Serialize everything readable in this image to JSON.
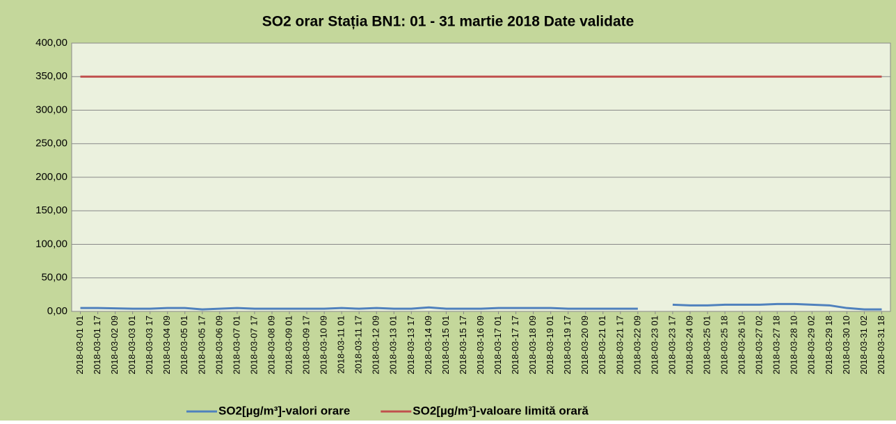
{
  "chart_data": {
    "type": "line",
    "title": "SO2 orar Stația BN1: 01 - 31 martie 2018 Date validate",
    "categories": [
      "2018-03-01 01",
      "2018-03-01 17",
      "2018-03-02 09",
      "2018-03-03 01",
      "2018-03-03 17",
      "2018-03-04 09",
      "2018-03-05 01",
      "2018-03-05 17",
      "2018-03-06 09",
      "2018-03-07 01",
      "2018-03-07 17",
      "2018-03-08 09",
      "2018-03-09 01",
      "2018-03-09 17",
      "2018-03-10 09",
      "2018-03-11 01",
      "2018-03-11 17",
      "2018-03-12 09",
      "2018-03-13 01",
      "2018-03-13 17",
      "2018-03-14 09",
      "2018-03-15 01",
      "2018-03-15 17",
      "2018-03-16 09",
      "2018-03-17 01",
      "2018-03-17 17",
      "2018-03-18 09",
      "2018-03-19 01",
      "2018-03-19 17",
      "2018-03-20 09",
      "2018-03-21 01",
      "2018-03-21 17",
      "2018-03-22 09",
      "2018-03-23 01",
      "2018-03-23 17",
      "2018-03-24 09",
      "2018-03-25 01",
      "2018-03-25 18",
      "2018-03-26 10",
      "2018-03-27 02",
      "2018-03-27 18",
      "2018-03-28 10",
      "2018-03-29 02",
      "2018-03-29 18",
      "2018-03-30 10",
      "2018-03-31 02",
      "2018-03-31 18"
    ],
    "series": [
      {
        "name": "SO2[µg/m³]-valori orare",
        "color": "#4f81bd",
        "values": [
          5,
          5,
          4.5,
          4,
          4,
          5,
          5,
          3,
          4,
          5,
          4,
          4,
          4,
          4,
          4,
          5,
          4,
          5,
          4,
          4,
          6,
          4,
          4,
          4,
          5,
          5,
          5,
          5,
          4,
          4,
          4,
          4,
          4,
          null,
          10,
          9,
          9,
          10,
          10,
          10,
          11,
          11,
          10,
          9,
          5,
          3,
          3
        ]
      },
      {
        "name": "SO2[µg/m³]-valoare limită orară",
        "color": "#c0504d",
        "values": [
          350,
          350,
          350,
          350,
          350,
          350,
          350,
          350,
          350,
          350,
          350,
          350,
          350,
          350,
          350,
          350,
          350,
          350,
          350,
          350,
          350,
          350,
          350,
          350,
          350,
          350,
          350,
          350,
          350,
          350,
          350,
          350,
          350,
          350,
          350,
          350,
          350,
          350,
          350,
          350,
          350,
          350,
          350,
          350,
          350,
          350,
          350
        ]
      }
    ],
    "ylim": [
      0,
      400
    ],
    "yticks": [
      {
        "value": 0,
        "label": "0,00"
      },
      {
        "value": 50,
        "label": "50,00"
      },
      {
        "value": 100,
        "label": "100,00"
      },
      {
        "value": 150,
        "label": "150,00"
      },
      {
        "value": 200,
        "label": "200,00"
      },
      {
        "value": 250,
        "label": "250,00"
      },
      {
        "value": 300,
        "label": "300,00"
      },
      {
        "value": 350,
        "label": "350,00"
      },
      {
        "value": 400,
        "label": "400,00"
      }
    ],
    "grid": true,
    "legend": "bottom"
  }
}
